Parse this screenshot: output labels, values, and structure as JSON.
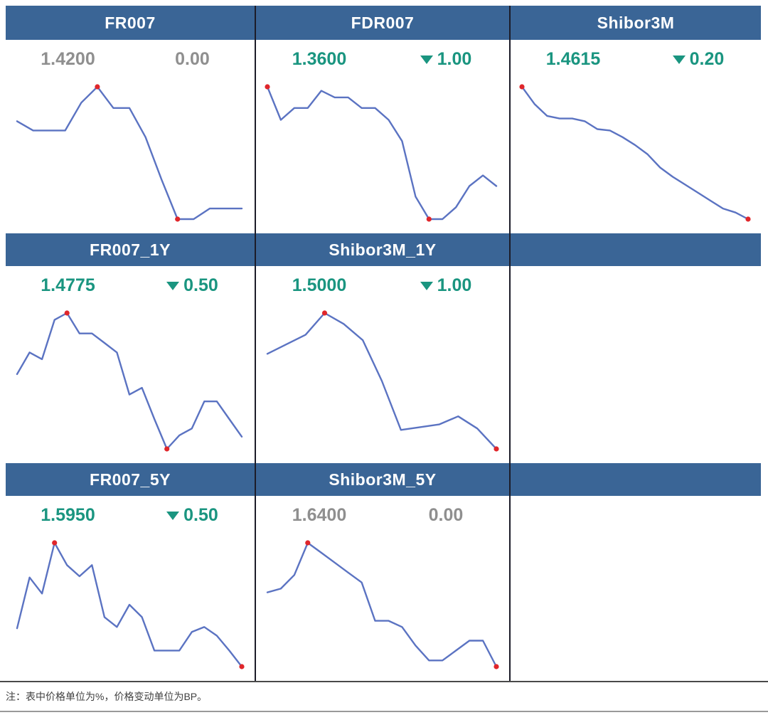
{
  "note": "注：表中价格单位为%，价格变动单位为BP。",
  "colors": {
    "header_bg": "#3a6596",
    "header_text": "#ffffff",
    "down_green": "#1a9580",
    "flat_gray": "#8f8f8f",
    "line_blue": "#5b73c2",
    "marker_red": "#e0262b",
    "divider": "#1c1c28"
  },
  "chart_data": [
    {
      "type": "line",
      "title": "FR007",
      "price": "1.4200",
      "change": "0.00",
      "direction": "flat",
      "y_unit": "normalized_0_100",
      "axes": false,
      "grid": false,
      "values": [
        74,
        67,
        67,
        67,
        88,
        100,
        84,
        84,
        62,
        30,
        0,
        0,
        8,
        8,
        8
      ],
      "max_marker_index": 5,
      "min_marker_index": 10
    },
    {
      "type": "line",
      "title": "FDR007",
      "price": "1.3600",
      "change": "1.00",
      "direction": "down",
      "y_unit": "normalized_0_100",
      "axes": false,
      "grid": false,
      "values": [
        100,
        75,
        84,
        84,
        97,
        92,
        92,
        84,
        84,
        75,
        59,
        17,
        0,
        0,
        9,
        25,
        33,
        25
      ],
      "max_marker_index": 0,
      "min_marker_index": 12
    },
    {
      "type": "line",
      "title": "Shibor3M",
      "price": "1.4615",
      "change": "0.20",
      "direction": "down",
      "y_unit": "normalized_0_100",
      "axes": false,
      "grid": false,
      "values": [
        100,
        87,
        78,
        76,
        76,
        74,
        68,
        67,
        62,
        56,
        49,
        39,
        32,
        26,
        20,
        14,
        8,
        5,
        0
      ],
      "max_marker_index": 0,
      "min_marker_index": 18
    },
    {
      "type": "line",
      "title": "FR007_1Y",
      "price": "1.4775",
      "change": "0.50",
      "direction": "down",
      "y_unit": "normalized_0_100",
      "axes": false,
      "grid": false,
      "values": [
        55,
        71,
        66,
        95,
        100,
        85,
        85,
        78,
        71,
        40,
        45,
        22,
        0,
        10,
        15,
        35,
        35,
        22,
        9
      ],
      "max_marker_index": 4,
      "min_marker_index": 12
    },
    {
      "type": "line",
      "title": "Shibor3M_1Y",
      "price": "1.5000",
      "change": "1.00",
      "direction": "down",
      "y_unit": "normalized_0_100",
      "axes": false,
      "grid": false,
      "values": [
        70,
        77,
        84,
        100,
        92,
        80,
        50,
        14,
        16,
        18,
        24,
        15,
        0
      ],
      "max_marker_index": 3,
      "min_marker_index": 12
    },
    {
      "type": "line",
      "title": "FR007_5Y",
      "price": "1.5950",
      "change": "0.50",
      "direction": "down",
      "y_unit": "normalized_0_100",
      "axes": false,
      "grid": false,
      "values": [
        31,
        72,
        59,
        100,
        82,
        73,
        82,
        40,
        32,
        50,
        40,
        13,
        13,
        13,
        28,
        32,
        25,
        13,
        0
      ],
      "max_marker_index": 3,
      "min_marker_index": 18
    },
    {
      "type": "line",
      "title": "Shibor3M_5Y",
      "price": "1.6400",
      "change": "0.00",
      "direction": "flat",
      "y_unit": "normalized_0_100",
      "axes": false,
      "grid": false,
      "values": [
        60,
        63,
        74,
        100,
        92,
        84,
        76,
        68,
        37,
        37,
        32,
        17,
        5,
        5,
        13,
        21,
        21,
        0
      ],
      "max_marker_index": 3,
      "min_marker_index": 17
    }
  ]
}
